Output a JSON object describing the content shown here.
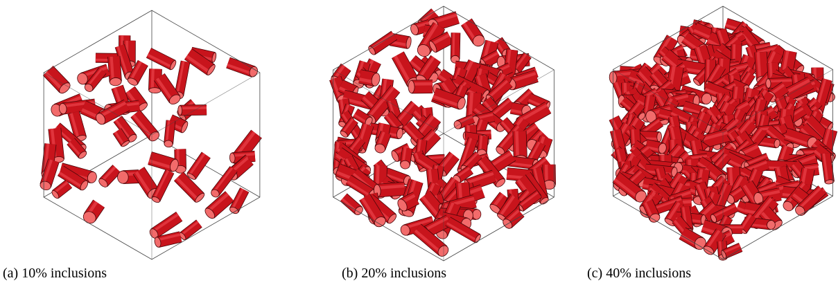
{
  "figure": {
    "colors": {
      "inclusion_body": "#c8141c",
      "inclusion_cap": "#f26b6b",
      "inclusion_edge": "#4a0508",
      "cube_edge": "#444444",
      "background": "#ffffff"
    },
    "panels": [
      {
        "caption": "(a) 10% inclusions",
        "volume_fraction": 0.1
      },
      {
        "caption": "(b) 20% inclusions",
        "volume_fraction": 0.2
      },
      {
        "caption": "(c) 40% inclusions",
        "volume_fraction": 0.4
      }
    ]
  }
}
